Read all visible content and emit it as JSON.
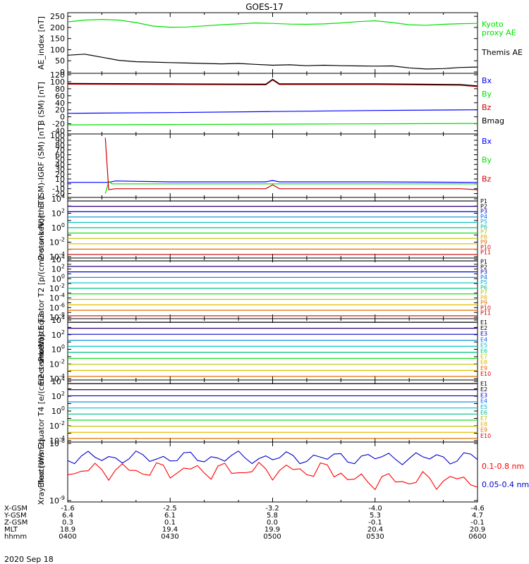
{
  "figure": {
    "title": "GOES-17",
    "date_label": "2020 Sep 18"
  },
  "chart_data": [
    {
      "type": "line",
      "ylabel": "AE_index [nT]",
      "ylim": [
        0,
        260
      ],
      "yticks": [
        0,
        50,
        100,
        150,
        200,
        250
      ],
      "xlim": [
        "04:00",
        "06:00"
      ],
      "series": [
        {
          "name": "Kyoto proxy AE",
          "name_lines": [
            "Kyoto",
            "proxy AE"
          ],
          "color": "#00e000",
          "x": [
            "04:00",
            "04:05",
            "04:10",
            "04:15",
            "04:20",
            "04:25",
            "04:30",
            "04:35",
            "04:40",
            "04:45",
            "04:50",
            "04:55",
            "05:00",
            "05:05",
            "05:10",
            "05:15",
            "05:20",
            "05:25",
            "05:30",
            "05:35",
            "05:40",
            "05:45",
            "05:50",
            "05:55",
            "06:00"
          ],
          "values": [
            225,
            233,
            236,
            233,
            222,
            206,
            201,
            202,
            207,
            212,
            216,
            220,
            218,
            215,
            214,
            216,
            220,
            226,
            230,
            222,
            212,
            210,
            214,
            217,
            218
          ]
        },
        {
          "name": "Themis AE",
          "name_lines": [
            "Themis AE"
          ],
          "color": "#000000",
          "x": [
            "04:00",
            "04:05",
            "04:10",
            "04:15",
            "04:20",
            "04:25",
            "04:30",
            "04:35",
            "04:40",
            "04:45",
            "04:50",
            "04:55",
            "05:00",
            "05:05",
            "05:10",
            "05:15",
            "05:20",
            "05:25",
            "05:30",
            "05:35",
            "05:40",
            "05:45",
            "05:50",
            "05:55",
            "06:00"
          ],
          "values": [
            75,
            80,
            66,
            52,
            46,
            44,
            42,
            40,
            38,
            36,
            38,
            34,
            30,
            32,
            28,
            30,
            28,
            27,
            26,
            27,
            18,
            13,
            15,
            20,
            22
          ]
        }
      ]
    },
    {
      "type": "line",
      "ylabel": "B (SM) [nT]",
      "ylim": [
        -45,
        120
      ],
      "yticks": [
        -40,
        -20,
        0,
        20,
        40,
        60,
        80,
        100,
        120
      ],
      "series": [
        {
          "name": "Bx",
          "name_lines": [
            "Bx"
          ],
          "color": "#0000ff",
          "x": [
            "04:00",
            "04:30",
            "05:00",
            "05:30",
            "06:00"
          ],
          "values": [
            10,
            12,
            15,
            18,
            20
          ]
        },
        {
          "name": "By",
          "name_lines": [
            "By"
          ],
          "color": "#00e000",
          "x": [
            "04:00",
            "04:30",
            "05:00",
            "05:30",
            "06:00"
          ],
          "values": [
            -23,
            -22,
            -21,
            -20,
            -19
          ]
        },
        {
          "name": "Bz",
          "name_lines": [
            "Bz"
          ],
          "color": "#cc0000",
          "x": [
            "04:00",
            "04:30",
            "04:58",
            "05:00",
            "05:02",
            "05:30",
            "05:55",
            "06:00"
          ],
          "values": [
            93,
            92,
            91,
            105,
            92,
            92,
            90,
            86
          ]
        },
        {
          "name": "Bmag",
          "name_lines": [
            "Bmag"
          ],
          "color": "#000000",
          "x": [
            "04:00",
            "04:30",
            "04:58",
            "05:00",
            "05:02",
            "05:30",
            "05:55",
            "06:00"
          ],
          "values": [
            95,
            94,
            93,
            107,
            94,
            94,
            92,
            88
          ]
        }
      ]
    },
    {
      "type": "line",
      "ylabel": "B (SM)-IGRF (SM) [nT]",
      "ylim": [
        -25,
        100
      ],
      "yticks": [
        -20,
        -10,
        0,
        10,
        20,
        30,
        40,
        50,
        60,
        70,
        80,
        90,
        100
      ],
      "series": [
        {
          "name": "Bx",
          "name_lines": [
            "Bx"
          ],
          "color": "#0000ff",
          "x": [
            "04:00",
            "04:12",
            "04:14",
            "04:30",
            "04:58",
            "05:00",
            "05:02",
            "05:30",
            "06:00"
          ],
          "values": [
            3,
            3,
            6,
            4,
            4,
            7,
            4,
            4,
            3
          ]
        },
        {
          "name": "By",
          "name_lines": [
            "By"
          ],
          "color": "#00e000",
          "x": [
            "04:11",
            "04:12",
            "04:13",
            "04:30",
            "05:00",
            "05:30",
            "06:00"
          ],
          "values": [
            -20,
            5,
            0,
            0,
            0,
            0,
            0
          ]
        },
        {
          "name": "Bz",
          "name_lines": [
            "Bz"
          ],
          "color": "#cc0000",
          "x": [
            "04:11",
            "04:12",
            "04:14",
            "04:30",
            "04:58",
            "05:00",
            "05:02",
            "05:30",
            "05:55",
            "06:00"
          ],
          "values": [
            95,
            -12,
            -10,
            -10,
            -10,
            -2,
            -10,
            -10,
            -10,
            -12
          ]
        }
      ]
    },
    {
      "type": "line",
      "ylabel": "Protons North T1",
      "yscale": "log",
      "ylim": [
        0.0001,
        10000
      ],
      "ytick_labels": [
        "10-4",
        "10-2",
        "100",
        "102",
        "104"
      ],
      "legend": [
        "P1",
        "P2",
        "P3",
        "P4",
        "P5",
        "P6",
        "P7",
        "P8",
        "P9",
        "P10",
        "P11"
      ]
    },
    {
      "type": "line",
      "ylabel": "Protons Equator T2 [p/(cm2-s-sr-keV)]",
      "yscale": "log",
      "ylim": [
        1e-08,
        10000
      ],
      "ytick_labels": [
        "10-8",
        "10-6",
        "10-4",
        "10-2",
        "100",
        "102",
        "104"
      ],
      "legend": [
        "P1",
        "P2",
        "P3",
        "P4",
        "P5",
        "P6",
        "P7",
        "P8",
        "P9",
        "P10",
        "P11"
      ]
    },
    {
      "type": "line",
      "ylabel": "Electrons North T3",
      "yscale": "log",
      "ylim": [
        0.0001,
        10000
      ],
      "ytick_labels": [
        "10-4",
        "10-2",
        "100",
        "102",
        "104"
      ],
      "legend": [
        "E1",
        "E2",
        "E3",
        "E4",
        "E5",
        "E6",
        "E7",
        "E8",
        "E9",
        "E10"
      ]
    },
    {
      "type": "line",
      "ylabel": "Electrons Equator T4 [e/(cm2-s-sr-keV)]",
      "yscale": "log",
      "ylim": [
        0.0001,
        10000
      ],
      "ytick_labels": [
        "10-4",
        "10-2",
        "100",
        "102",
        "104"
      ],
      "legend": [
        "E1",
        "E2",
        "E3",
        "E4",
        "E5",
        "E6",
        "E7",
        "E8",
        "E9",
        "E10"
      ]
    },
    {
      "type": "line",
      "ylabel": "Xray flux [W/m2]",
      "yscale": "log",
      "ylim": [
        1e-09,
        1e-08
      ],
      "ytick_labels": [
        "10-9",
        "10-8"
      ],
      "series": [
        {
          "name": "0.1-0.8 nm",
          "color": "#ff0000"
        },
        {
          "name": "0.05-0.4 nm",
          "color": "#0000cc"
        }
      ]
    }
  ],
  "x_axis": {
    "row_labels": [
      "X-GSM",
      "Y-GSM",
      "Z-GSM",
      "MLT",
      "hhmm"
    ],
    "columns": [
      {
        "values": [
          "-1.6",
          "6.4",
          "0.3",
          "18.9",
          "0400"
        ]
      },
      {
        "values": [
          "-2.5",
          "6.1",
          "0.1",
          "19.4",
          "0430"
        ]
      },
      {
        "values": [
          "-3.2",
          "5.8",
          "0.0",
          "19.9",
          "0500"
        ]
      },
      {
        "values": [
          "-4.0",
          "5.3",
          "-0.1",
          "20.4",
          "0530"
        ]
      },
      {
        "values": [
          "-4.6",
          "4.7",
          "-0.1",
          "20.9",
          "0600"
        ]
      }
    ]
  }
}
